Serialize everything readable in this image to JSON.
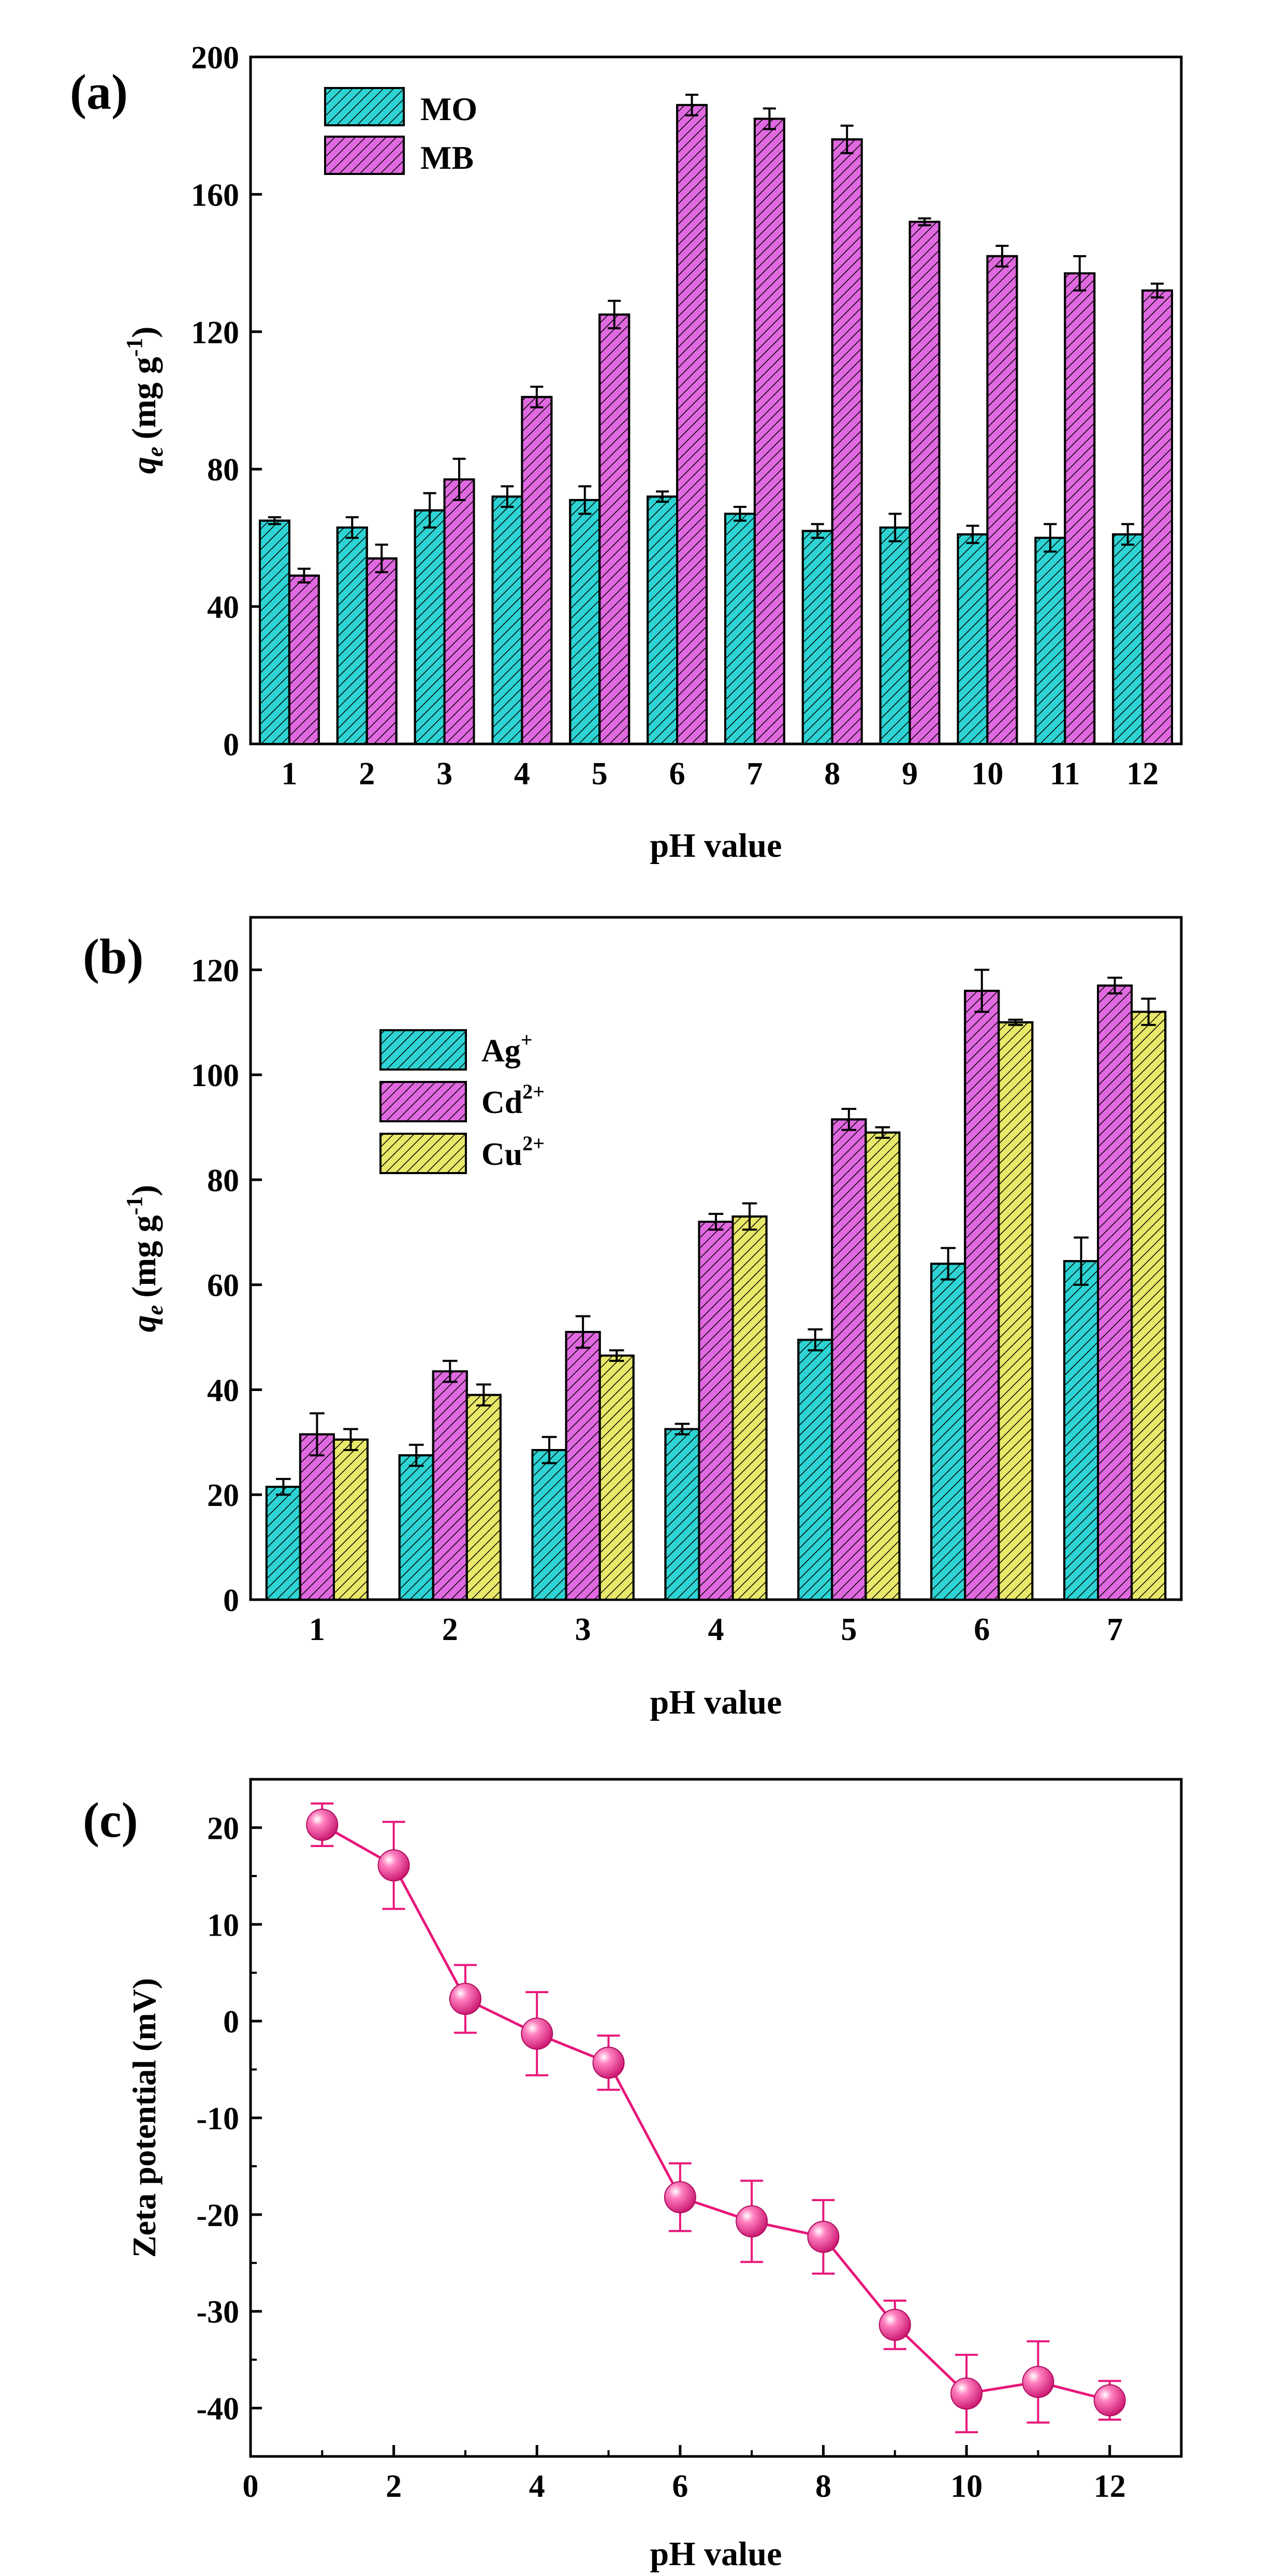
{
  "chart_data": [
    {
      "panel_label": "(a)",
      "type": "bar",
      "xlabel": "pH value",
      "ylabel_main": "q",
      "ylabel_sub": "e",
      "ylabel_unit": "(mg g",
      "ylabel_sup": "-1",
      "ylabel_close": ")",
      "ylim": [
        0,
        200
      ],
      "yticks": [
        "0",
        "40",
        "80",
        "120",
        "160",
        "200"
      ],
      "categories": [
        "1",
        "2",
        "3",
        "4",
        "5",
        "6",
        "7",
        "8",
        "9",
        "10",
        "11",
        "12"
      ],
      "legend_position": "top-left",
      "series": [
        {
          "name": "MO",
          "color": "#2ed3d3",
          "values": [
            65,
            63,
            68,
            72,
            71,
            72,
            67,
            62,
            63,
            61,
            60,
            61
          ],
          "errors": [
            1,
            3,
            5,
            3,
            4,
            1.5,
            2,
            2,
            4,
            2.5,
            4,
            3
          ]
        },
        {
          "name": "MB",
          "color": "#e069e0",
          "values": [
            49,
            54,
            77,
            101,
            125,
            186,
            182,
            176,
            152,
            142,
            137,
            132
          ],
          "errors": [
            2,
            4,
            6,
            3,
            4,
            3,
            3,
            4,
            1,
            3,
            5,
            2
          ]
        }
      ]
    },
    {
      "panel_label": "(b)",
      "type": "bar",
      "xlabel": "pH value",
      "ylabel_main": "q",
      "ylabel_sub": "e",
      "ylabel_unit": "(mg g",
      "ylabel_sup": "-1",
      "ylabel_close": ")",
      "ylim": [
        0,
        130
      ],
      "yticks": [
        "0",
        "20",
        "40",
        "60",
        "80",
        "100",
        "120"
      ],
      "categories": [
        "1",
        "2",
        "3",
        "4",
        "5",
        "6",
        "7"
      ],
      "legend_position": "upper-left",
      "series": [
        {
          "name": "Ag",
          "sup": "+",
          "color": "#2ed3d3",
          "values": [
            21.5,
            27.5,
            28.5,
            32.5,
            49.5,
            64,
            64.5
          ],
          "errors": [
            1.5,
            2,
            2.5,
            1,
            2,
            3,
            4.5
          ]
        },
        {
          "name": "Cd",
          "sup": "2+",
          "color": "#e069e0",
          "values": [
            31.5,
            43.5,
            51,
            72,
            91.5,
            116,
            117
          ],
          "errors": [
            4,
            2,
            3,
            1.5,
            2,
            4,
            1.5
          ]
        },
        {
          "name": "Cu",
          "sup": "2+",
          "color": "#e8e86a",
          "values": [
            30.5,
            39,
            46.5,
            73,
            89,
            110,
            112
          ],
          "errors": [
            2,
            2,
            1,
            2.5,
            1,
            0.5,
            2.5
          ]
        }
      ]
    },
    {
      "panel_label": "(c)",
      "type": "line",
      "xlabel": "pH value",
      "ylabel": "Zeta potential (mV)",
      "xlim": [
        0,
        13
      ],
      "ylim": [
        -45,
        25
      ],
      "xticks": [
        "0",
        "2",
        "4",
        "6",
        "8",
        "10",
        "12"
      ],
      "yticks": [
        "-40",
        "-30",
        "-20",
        "-10",
        "0",
        "10",
        "20"
      ],
      "color": "#e8167a",
      "series": [
        {
          "name": "Zeta potential",
          "x": [
            1,
            2,
            3,
            4,
            5,
            6,
            7,
            8,
            9,
            10,
            11,
            12
          ],
          "y": [
            20.3,
            16.1,
            2.3,
            -1.3,
            -4.3,
            -18.2,
            -20.7,
            -22.3,
            -31.4,
            -38.5,
            -37.3,
            -39.2
          ],
          "errors": [
            2.2,
            4.5,
            3.5,
            4.3,
            2.8,
            3.5,
            4.2,
            3.8,
            2.5,
            4.0,
            4.2,
            2.0
          ]
        }
      ]
    }
  ]
}
